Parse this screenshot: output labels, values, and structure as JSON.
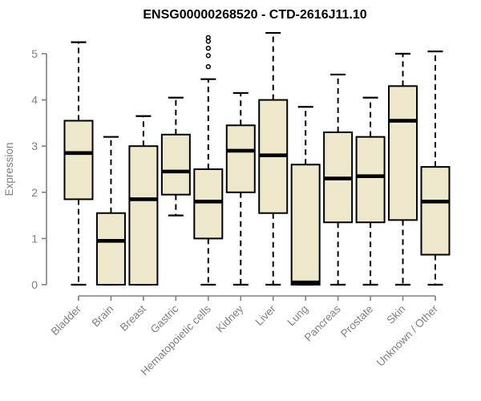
{
  "chart_data": {
    "type": "boxplot",
    "title": "ENSG00000268520 - CTD-2616J11.10",
    "ylabel": "Expression",
    "xlabel": "",
    "ylim": [
      0,
      5
    ],
    "yticks": [
      0,
      1,
      2,
      3,
      4,
      5
    ],
    "grid": false,
    "legend": "none",
    "categories": [
      "Bladder",
      "Brain",
      "Breast",
      "Gastric",
      "Hematopoietic cells",
      "Kidney",
      "Liver",
      "Lung",
      "Pancreas",
      "Prostate",
      "Skin",
      "Unknown / Other"
    ],
    "boxes": [
      {
        "category": "Bladder",
        "min": 0,
        "q1": 1.85,
        "median": 2.85,
        "q3": 3.55,
        "max": 5.25,
        "outliers": []
      },
      {
        "category": "Brain",
        "min": 0,
        "q1": 0,
        "median": 0.95,
        "q3": 1.55,
        "max": 3.2,
        "outliers": []
      },
      {
        "category": "Breast",
        "min": 0,
        "q1": 0,
        "median": 1.85,
        "q3": 3.0,
        "max": 3.65,
        "outliers": []
      },
      {
        "category": "Gastric",
        "min": 1.5,
        "q1": 1.95,
        "median": 2.45,
        "q3": 3.25,
        "max": 4.05,
        "outliers": []
      },
      {
        "category": "Hematopoietic cells",
        "min": 0,
        "q1": 1.0,
        "median": 1.8,
        "q3": 2.5,
        "max": 4.45,
        "outliers": [
          5.35,
          5.27,
          5.12,
          4.96,
          4.72
        ]
      },
      {
        "category": "Kidney",
        "min": 0,
        "q1": 2.0,
        "median": 2.9,
        "q3": 3.45,
        "max": 4.15,
        "outliers": []
      },
      {
        "category": "Liver",
        "min": 0,
        "q1": 1.55,
        "median": 2.8,
        "q3": 4.0,
        "max": 5.45,
        "outliers": []
      },
      {
        "category": "Lung",
        "min": 0,
        "q1": 0,
        "median": 0.05,
        "q3": 2.6,
        "max": 3.85,
        "outliers": []
      },
      {
        "category": "Pancreas",
        "min": 0,
        "q1": 1.35,
        "median": 2.3,
        "q3": 3.3,
        "max": 4.55,
        "outliers": []
      },
      {
        "category": "Prostate",
        "min": 0,
        "q1": 1.35,
        "median": 2.35,
        "q3": 3.2,
        "max": 4.05,
        "outliers": []
      },
      {
        "category": "Skin",
        "min": 0,
        "q1": 1.4,
        "median": 3.55,
        "q3": 4.3,
        "max": 5.0,
        "outliers": []
      },
      {
        "category": "Unknown / Other",
        "min": 0,
        "q1": 0.65,
        "median": 1.8,
        "q3": 2.55,
        "max": 5.05,
        "outliers": []
      }
    ],
    "colors": {
      "box_fill": "#EDE7CC",
      "box_stroke": "#000000",
      "median": "#000000",
      "whisker": "#000000",
      "axis": "#808080",
      "labels": "#808080",
      "title": "#000000",
      "background": "#FFFFFF"
    }
  }
}
